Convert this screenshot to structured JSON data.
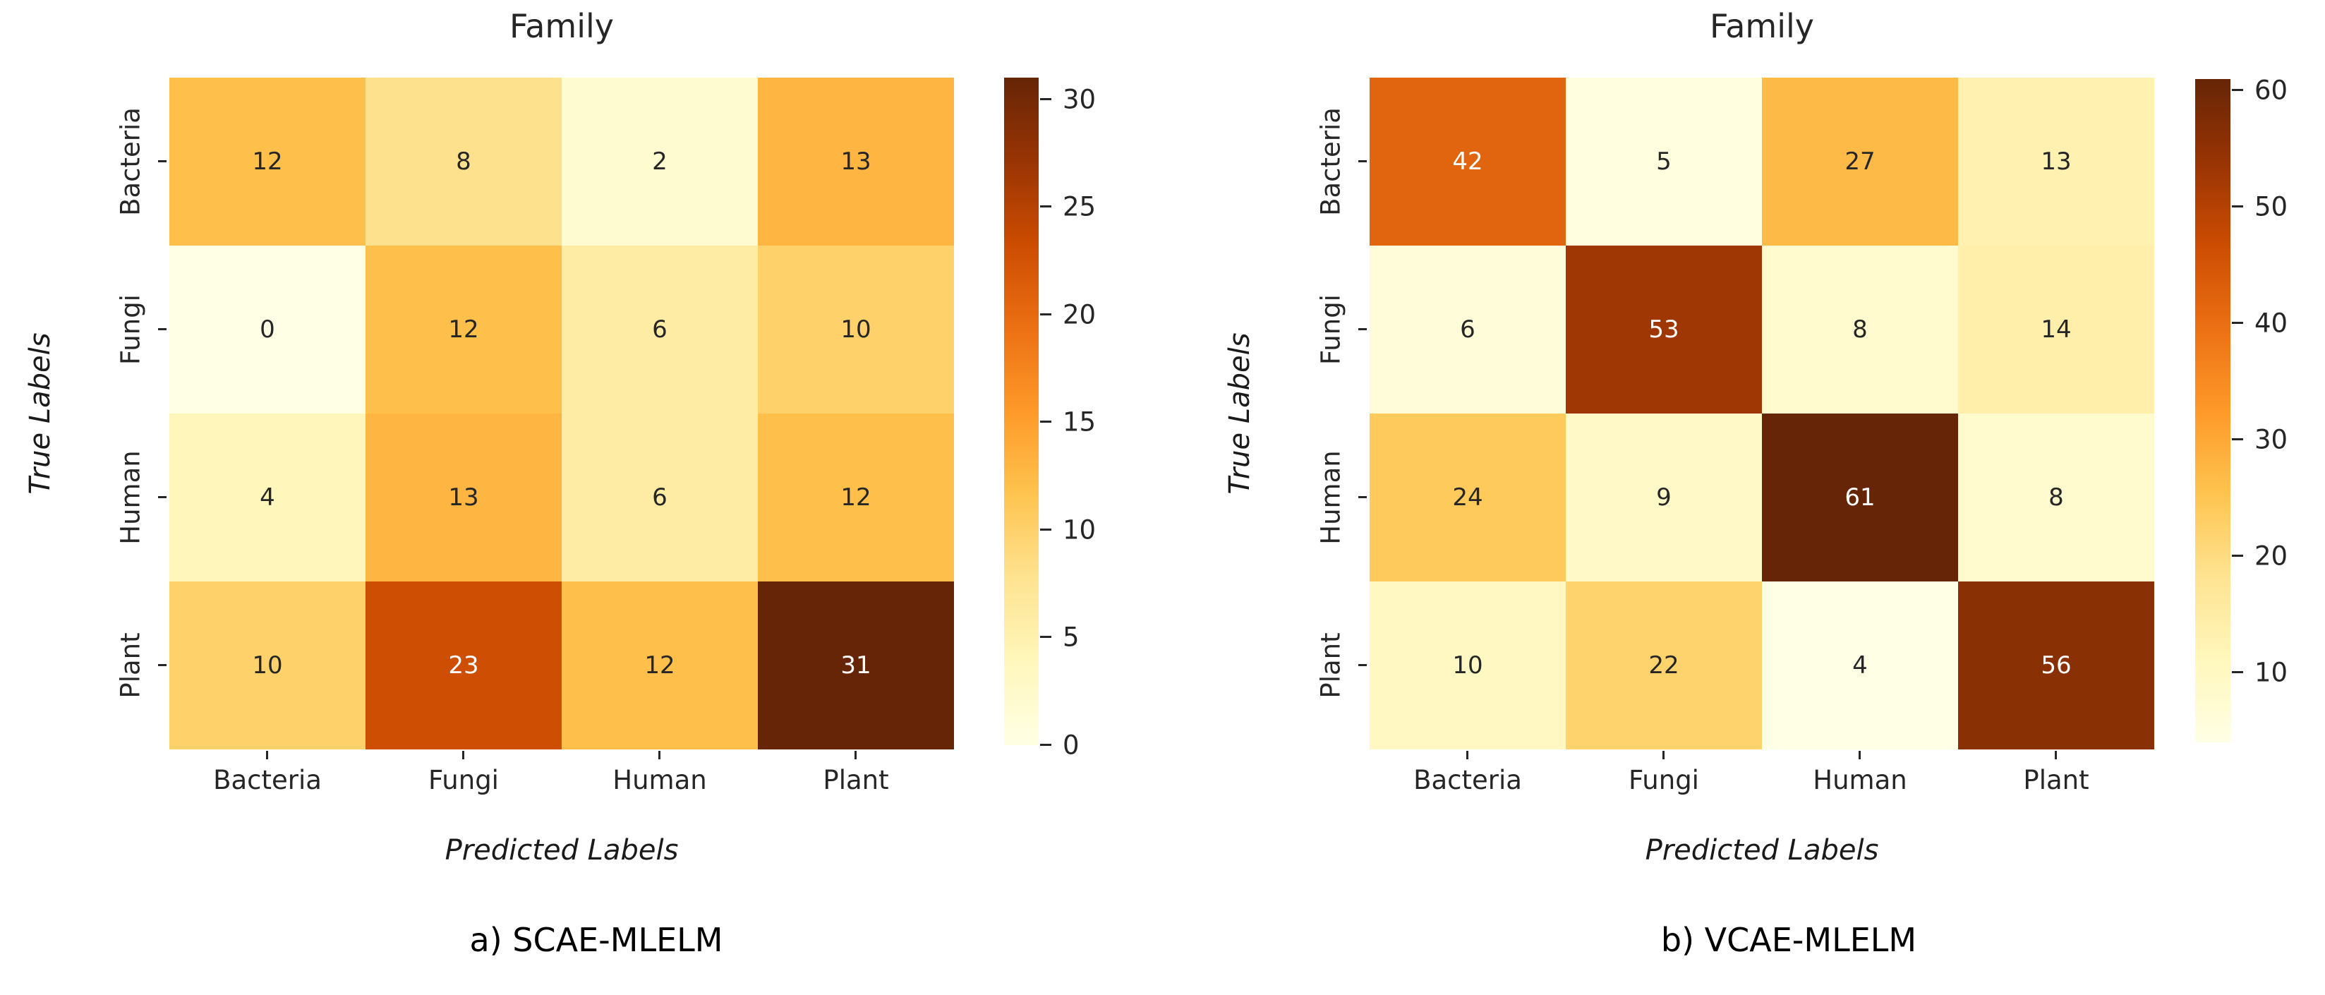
{
  "figure": {
    "background": "#ffffff"
  },
  "colormap": {
    "name": "YlOrBr",
    "stops": [
      {
        "t": 0.0,
        "color": "#ffffe5"
      },
      {
        "t": 0.125,
        "color": "#fff7bc"
      },
      {
        "t": 0.25,
        "color": "#fee391"
      },
      {
        "t": 0.375,
        "color": "#fec44f"
      },
      {
        "t": 0.5,
        "color": "#fe9929"
      },
      {
        "t": 0.625,
        "color": "#ec7014"
      },
      {
        "t": 0.75,
        "color": "#cc4c02"
      },
      {
        "t": 0.875,
        "color": "#993404"
      },
      {
        "t": 1.0,
        "color": "#662506"
      }
    ],
    "annotation_dark": "#262626",
    "annotation_light": "#ffffff",
    "light_text_threshold": 0.6
  },
  "chart_data": [
    {
      "type": "heatmap",
      "title": "Family",
      "xlabel": "Predicted Labels",
      "ylabel": "True Labels",
      "caption": "a) SCAE-MLELM",
      "x_categories": [
        "Bacteria",
        "Fungi",
        "Human",
        "Plant"
      ],
      "y_categories": [
        "Bacteria",
        "Fungi",
        "Human",
        "Plant"
      ],
      "matrix": [
        [
          12,
          8,
          2,
          13
        ],
        [
          0,
          12,
          6,
          10
        ],
        [
          4,
          13,
          6,
          12
        ],
        [
          10,
          23,
          12,
          31
        ]
      ],
      "vmin": 0,
      "vmax": 31,
      "colorbar_ticks": [
        0,
        5,
        10,
        15,
        20,
        25,
        30
      ],
      "legend_position": "right",
      "grid": false
    },
    {
      "type": "heatmap",
      "title": "Family",
      "xlabel": "Predicted Labels",
      "ylabel": "True Labels",
      "caption": "b) VCAE-MLELM",
      "x_categories": [
        "Bacteria",
        "Fungi",
        "Human",
        "Plant"
      ],
      "y_categories": [
        "Bacteria",
        "Fungi",
        "Human",
        "Plant"
      ],
      "matrix": [
        [
          42,
          5,
          27,
          13
        ],
        [
          6,
          53,
          8,
          14
        ],
        [
          24,
          9,
          61,
          8
        ],
        [
          10,
          22,
          4,
          56
        ]
      ],
      "vmin": 4,
      "vmax": 61,
      "colorbar_ticks": [
        10,
        20,
        30,
        40,
        50,
        60
      ],
      "legend_position": "right",
      "grid": false
    }
  ]
}
